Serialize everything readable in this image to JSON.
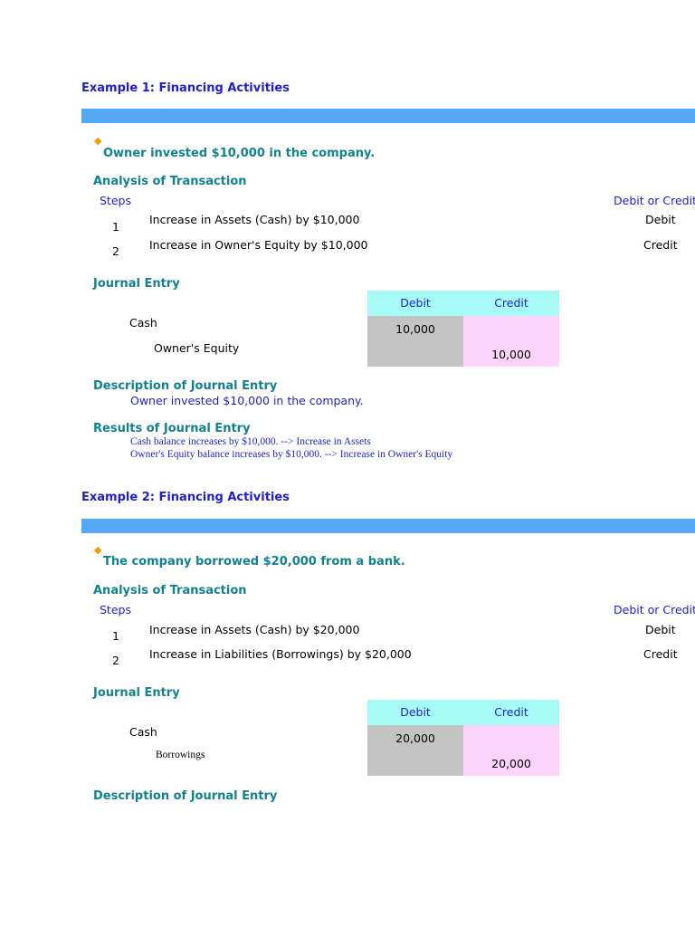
{
  "examples": [
    {
      "title": "Example 1:  Financing Activities",
      "transaction": "Owner invested $10,000 in the company.",
      "analysis_heading": "Analysis of Transaction",
      "steps_label": "Steps",
      "debit_or_credit_label": "Debit or Credit",
      "steps": [
        {
          "num": "1",
          "text": "Increase in Assets (Cash) by $10,000",
          "side": "Debit"
        },
        {
          "num": "2",
          "text": "Increase in Owner's Equity by $10,000",
          "side": "Credit"
        }
      ],
      "journal_heading": "Journal Entry",
      "journal": {
        "debit_header": "Debit",
        "credit_header": "Credit",
        "debit_account": "Cash",
        "credit_account": "Owner's Equity",
        "debit_amount": "10,000",
        "credit_amount": "10,000"
      },
      "description_heading": "Description of Journal Entry",
      "description": "Owner invested $10,000 in the company.",
      "results_heading": "Results of Journal Entry",
      "results": [
        "Cash balance increases by $10,000.  --> Increase in Assets",
        "Owner's Equity balance increases by $10,000.  -->  Increase in Owner's Equity"
      ]
    },
    {
      "title": "Example 2:  Financing Activities",
      "transaction": "The company borrowed $20,000 from a bank.",
      "analysis_heading": "Analysis of Transaction",
      "steps_label": "Steps",
      "debit_or_credit_label": "Debit or Credit",
      "steps": [
        {
          "num": "1",
          "text": "Increase in Assets (Cash) by $20,000",
          "side": "Debit"
        },
        {
          "num": "2",
          "text": "Increase in Liabilities (Borrowings) by $20,000",
          "side": "Credit"
        }
      ],
      "journal_heading": "Journal Entry",
      "journal": {
        "debit_header": "Debit",
        "credit_header": "Credit",
        "debit_account": "Cash",
        "credit_account": "Borrowings",
        "debit_amount": "20,000",
        "credit_amount": "20,000"
      },
      "description_heading": "Description of Journal Entry"
    }
  ],
  "colors": {
    "bar": "#55a8f5",
    "title_blue": "#1f1fd0",
    "teal": "#12828e",
    "bullet": "#f19a0a",
    "header_cyan": "#a6fbf6",
    "debit_gray": "#c3c3c3",
    "credit_pink": "#fcd4fc"
  },
  "icons": {
    "bullet": "diamond-icon"
  }
}
